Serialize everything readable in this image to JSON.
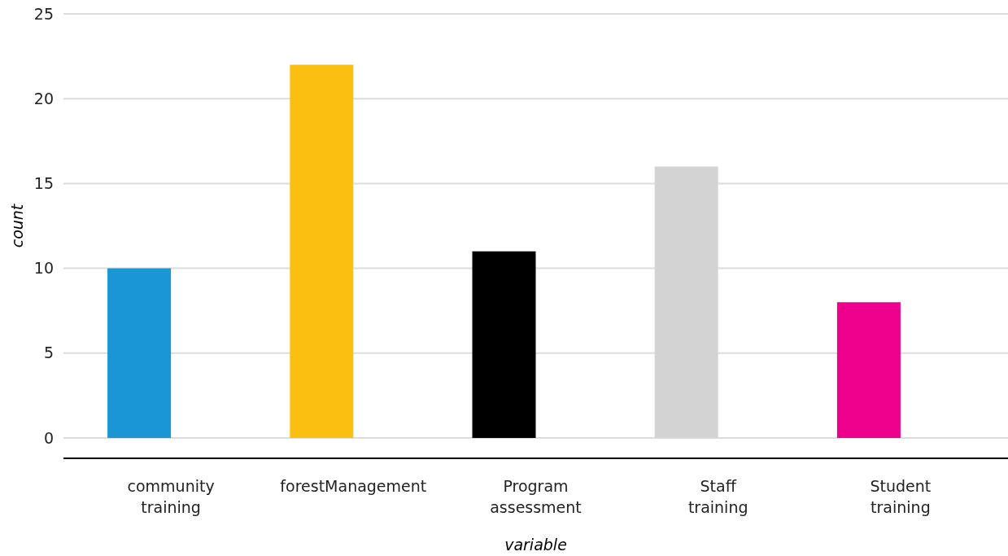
{
  "chart_data": {
    "type": "bar",
    "xlabel": "variable",
    "ylabel": "count",
    "categories": [
      "community training",
      "forestManagement",
      "Program assessment",
      "Staff training",
      "Student training"
    ],
    "values": [
      10,
      22,
      11,
      16,
      8
    ],
    "colors": [
      "#1996d3",
      "#fbbf12",
      "#000000",
      "#d3d3d3",
      "#ec008c"
    ],
    "ylim": [
      -1.2,
      25
    ],
    "yticks": [
      0,
      5,
      10,
      15,
      20,
      25
    ],
    "grid": "y"
  }
}
